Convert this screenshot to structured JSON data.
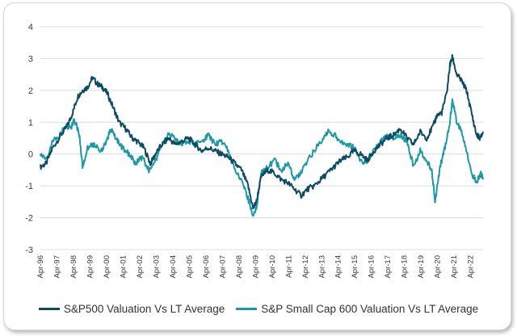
{
  "colors": {
    "sp500": "#0f4a63",
    "smallcap": "#1f98a6",
    "grid": "#dcdcdc"
  },
  "chart_data": {
    "type": "line",
    "title": "",
    "xlabel": "",
    "ylabel": "",
    "ylim": [
      -3,
      4
    ],
    "y_ticks": [
      4,
      3,
      2,
      1,
      0,
      -1,
      -2,
      -3
    ],
    "grid": true,
    "legend_position": "bottom",
    "x_range": [
      1996.25,
      2023.0
    ],
    "x_tick_labels": [
      "Apr-96",
      "Apr-97",
      "Apr-98",
      "Apr-99",
      "Apr-00",
      "Apr-01",
      "Apr-02",
      "Apr-03",
      "Apr-04",
      "Apr-05",
      "Apr-06",
      "Apr-07",
      "Apr-08",
      "Apr-09",
      "Apr-10",
      "Apr-11",
      "Apr-12",
      "Apr-13",
      "Apr-14",
      "Apr-15",
      "Apr-16",
      "Apr-17",
      "Apr-18",
      "Apr-19",
      "Apr-20",
      "Apr-21",
      "Apr-22"
    ],
    "series": [
      {
        "name": "S&P500 Valuation Vs LT Average",
        "points": [
          [
            1996.25,
            -0.4
          ],
          [
            1996.6,
            -0.3
          ],
          [
            1997.0,
            0.2
          ],
          [
            1997.5,
            0.6
          ],
          [
            1997.9,
            0.9
          ],
          [
            1998.2,
            1.3
          ],
          [
            1998.5,
            1.8
          ],
          [
            1998.8,
            2.0
          ],
          [
            1999.1,
            2.1
          ],
          [
            1999.4,
            2.4
          ],
          [
            1999.7,
            2.2
          ],
          [
            2000.0,
            2.1
          ],
          [
            2000.3,
            1.9
          ],
          [
            2000.7,
            1.4
          ],
          [
            2001.0,
            1.0
          ],
          [
            2001.4,
            0.8
          ],
          [
            2001.8,
            0.5
          ],
          [
            2002.1,
            0.4
          ],
          [
            2002.5,
            0.2
          ],
          [
            2002.9,
            -0.3
          ],
          [
            2003.2,
            0.0
          ],
          [
            2003.6,
            0.3
          ],
          [
            2004.0,
            0.5
          ],
          [
            2004.4,
            0.3
          ],
          [
            2004.8,
            0.4
          ],
          [
            2005.2,
            0.5
          ],
          [
            2005.6,
            0.3
          ],
          [
            2006.0,
            0.1
          ],
          [
            2006.4,
            0.2
          ],
          [
            2006.8,
            0.1
          ],
          [
            2007.2,
            0.0
          ],
          [
            2007.6,
            -0.1
          ],
          [
            2008.0,
            -0.3
          ],
          [
            2008.4,
            -0.5
          ],
          [
            2008.8,
            -1.0
          ],
          [
            2009.1,
            -1.7
          ],
          [
            2009.3,
            -1.5
          ],
          [
            2009.6,
            -0.7
          ],
          [
            2010.0,
            -0.5
          ],
          [
            2010.4,
            -0.6
          ],
          [
            2010.8,
            -0.8
          ],
          [
            2011.2,
            -0.9
          ],
          [
            2011.6,
            -1.1
          ],
          [
            2012.0,
            -1.3
          ],
          [
            2012.4,
            -1.1
          ],
          [
            2012.8,
            -1.0
          ],
          [
            2013.2,
            -0.8
          ],
          [
            2013.6,
            -0.6
          ],
          [
            2014.0,
            -0.4
          ],
          [
            2014.4,
            -0.2
          ],
          [
            2014.8,
            -0.1
          ],
          [
            2015.2,
            0.1
          ],
          [
            2015.6,
            0.0
          ],
          [
            2016.0,
            -0.2
          ],
          [
            2016.4,
            0.1
          ],
          [
            2016.8,
            0.3
          ],
          [
            2017.2,
            0.5
          ],
          [
            2017.6,
            0.6
          ],
          [
            2018.0,
            0.8
          ],
          [
            2018.4,
            0.5
          ],
          [
            2018.8,
            0.3
          ],
          [
            2019.2,
            0.7
          ],
          [
            2019.6,
            0.5
          ],
          [
            2020.0,
            0.9
          ],
          [
            2020.2,
            1.2
          ],
          [
            2020.5,
            1.3
          ],
          [
            2020.8,
            1.9
          ],
          [
            2021.0,
            2.8
          ],
          [
            2021.15,
            3.05
          ],
          [
            2021.4,
            2.5
          ],
          [
            2021.7,
            2.3
          ],
          [
            2022.0,
            2.0
          ],
          [
            2022.3,
            1.3
          ],
          [
            2022.6,
            0.6
          ],
          [
            2022.85,
            0.5
          ],
          [
            2023.0,
            0.7
          ]
        ]
      },
      {
        "name": "S&P Small Cap 600 Valuation Vs LT Average",
        "points": [
          [
            1996.25,
            0.0
          ],
          [
            1996.6,
            -0.2
          ],
          [
            1997.0,
            0.4
          ],
          [
            1997.4,
            0.6
          ],
          [
            1997.8,
            0.9
          ],
          [
            1998.1,
            0.8
          ],
          [
            1998.3,
            1.1
          ],
          [
            1998.6,
            0.6
          ],
          [
            1998.8,
            -0.4
          ],
          [
            1999.1,
            0.2
          ],
          [
            1999.5,
            0.3
          ],
          [
            1999.9,
            0.1
          ],
          [
            2000.2,
            0.3
          ],
          [
            2000.5,
            0.8
          ],
          [
            2000.8,
            0.5
          ],
          [
            2001.2,
            0.2
          ],
          [
            2001.6,
            0.0
          ],
          [
            2002.0,
            -0.3
          ],
          [
            2002.4,
            -0.1
          ],
          [
            2002.8,
            -0.5
          ],
          [
            2003.2,
            -0.2
          ],
          [
            2003.6,
            0.3
          ],
          [
            2004.0,
            0.6
          ],
          [
            2004.4,
            0.5
          ],
          [
            2004.8,
            0.3
          ],
          [
            2005.2,
            0.4
          ],
          [
            2005.6,
            0.3
          ],
          [
            2006.0,
            0.4
          ],
          [
            2006.4,
            0.6
          ],
          [
            2006.8,
            0.3
          ],
          [
            2007.2,
            0.4
          ],
          [
            2007.6,
            0.1
          ],
          [
            2008.0,
            -0.5
          ],
          [
            2008.4,
            -0.8
          ],
          [
            2008.8,
            -1.4
          ],
          [
            2009.1,
            -1.9
          ],
          [
            2009.3,
            -1.7
          ],
          [
            2009.6,
            -0.6
          ],
          [
            2010.0,
            -0.4
          ],
          [
            2010.4,
            -0.2
          ],
          [
            2010.8,
            -0.5
          ],
          [
            2011.2,
            -0.3
          ],
          [
            2011.6,
            -0.8
          ],
          [
            2012.0,
            -0.6
          ],
          [
            2012.4,
            -0.2
          ],
          [
            2012.8,
            0.1
          ],
          [
            2013.2,
            0.4
          ],
          [
            2013.6,
            0.7
          ],
          [
            2014.0,
            0.6
          ],
          [
            2014.4,
            0.4
          ],
          [
            2014.8,
            0.3
          ],
          [
            2015.2,
            0.2
          ],
          [
            2015.6,
            -0.2
          ],
          [
            2016.0,
            -0.3
          ],
          [
            2016.4,
            0.1
          ],
          [
            2016.8,
            0.4
          ],
          [
            2017.2,
            0.6
          ],
          [
            2017.6,
            0.5
          ],
          [
            2018.0,
            0.6
          ],
          [
            2018.4,
            0.4
          ],
          [
            2018.8,
            -0.4
          ],
          [
            2019.2,
            0.1
          ],
          [
            2019.6,
            -0.2
          ],
          [
            2019.9,
            -0.5
          ],
          [
            2020.1,
            -1.5
          ],
          [
            2020.4,
            -0.4
          ],
          [
            2020.7,
            0.2
          ],
          [
            2021.0,
            1.0
          ],
          [
            2021.15,
            1.75
          ],
          [
            2021.4,
            1.0
          ],
          [
            2021.7,
            0.7
          ],
          [
            2022.0,
            0.1
          ],
          [
            2022.3,
            -0.6
          ],
          [
            2022.6,
            -0.9
          ],
          [
            2022.85,
            -0.6
          ],
          [
            2023.0,
            -0.8
          ]
        ]
      }
    ]
  }
}
